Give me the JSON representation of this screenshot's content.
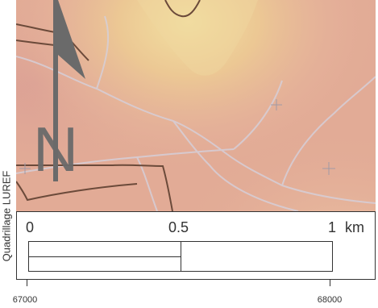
{
  "map": {
    "north_arrow": {
      "letter": "N"
    },
    "scale_bar": {
      "labels": {
        "start": "0",
        "mid": "0.5",
        "end": "1",
        "unit": "km"
      }
    },
    "side_label": "Quadrillage LUREF",
    "coordinates": {
      "left": "67000",
      "right": "68000"
    },
    "colors": {
      "terrain_base": "#e2ab96",
      "highlight_yellow": "#f2dfa0",
      "boundary_brown": "#6b4a3a",
      "road_light": "#d8d0d8",
      "arrow_gray": "#6a6a6a"
    }
  }
}
